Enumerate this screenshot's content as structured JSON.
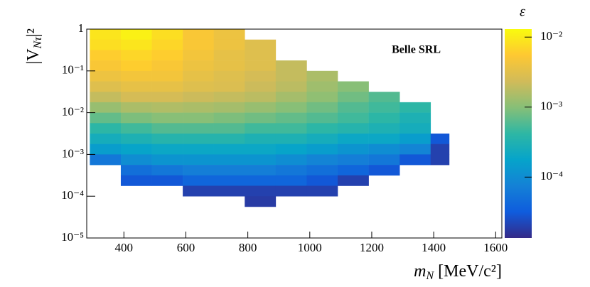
{
  "chart_data": {
    "type": "heatmap",
    "annotation": "Belle  SRL",
    "xlabel": {
      "main": "m",
      "sub": "N",
      "tail": " [MeV/c²]"
    },
    "ylabel": {
      "main": "|V",
      "sub": "Nτ",
      "tail": "|²"
    },
    "colorbar_title": "ε",
    "x_edges": [
      290,
      390,
      490,
      590,
      690,
      790,
      890,
      990,
      1090,
      1190,
      1290,
      1390,
      1450
    ],
    "y_edges": [
      1,
      0.562,
      0.316,
      0.178,
      0.1,
      0.0562,
      0.0316,
      0.0178,
      0.01,
      0.00562,
      0.00316,
      0.00178,
      0.001,
      0.000562,
      0.000316,
      0.000178,
      0.0001,
      5.62e-05
    ],
    "z": [
      [
        0.009,
        0.011,
        0.008,
        0.005,
        0.004,
        null,
        null,
        null,
        null,
        null,
        null,
        null
      ],
      [
        0.008,
        0.009,
        0.007,
        0.005,
        0.004,
        0.003,
        null,
        null,
        null,
        null,
        null,
        null
      ],
      [
        0.006,
        0.007,
        0.006,
        0.0045,
        0.0035,
        0.003,
        null,
        null,
        null,
        null,
        null,
        null
      ],
      [
        0.005,
        0.006,
        0.005,
        0.004,
        0.0035,
        0.003,
        0.002,
        null,
        null,
        null,
        null,
        null
      ],
      [
        0.004,
        0.0045,
        0.0045,
        0.0035,
        0.003,
        0.0025,
        0.002,
        0.0015,
        null,
        null,
        null,
        null
      ],
      [
        0.003,
        0.0035,
        0.0035,
        0.003,
        0.0028,
        0.0022,
        0.0018,
        0.0013,
        0.001,
        null,
        null,
        null
      ],
      [
        0.002,
        0.0025,
        0.0025,
        0.0022,
        0.002,
        0.0018,
        0.0014,
        0.0011,
        0.0008,
        0.0006,
        null,
        null
      ],
      [
        0.0012,
        0.0015,
        0.0016,
        0.0015,
        0.0014,
        0.0012,
        0.001,
        0.0008,
        0.0006,
        0.0005,
        0.0004,
        null
      ],
      [
        0.0007,
        0.0009,
        0.001,
        0.001,
        0.0009,
        0.0008,
        0.0007,
        0.0006,
        0.0005,
        0.0004,
        0.0003,
        null
      ],
      [
        0.0004,
        0.0005,
        0.0006,
        0.0006,
        0.0006,
        0.0005,
        0.0005,
        0.0004,
        0.00035,
        0.0003,
        0.00025,
        null
      ],
      [
        0.00025,
        0.0003,
        0.00035,
        0.00035,
        0.00035,
        0.0003,
        0.0003,
        0.00025,
        0.0002,
        0.0002,
        0.00015,
        3e-05
      ],
      [
        0.00015,
        0.00018,
        0.0002,
        0.0002,
        0.0002,
        0.0002,
        0.00018,
        0.00015,
        0.00012,
        0.0001,
        8e-05,
        2e-05
      ],
      [
        6e-05,
        0.0001,
        0.00012,
        0.00012,
        0.00012,
        0.00012,
        0.0001,
        8e-05,
        7e-05,
        6e-05,
        3e-05,
        2e-05
      ],
      [
        null,
        5e-05,
        6e-05,
        7e-05,
        7e-05,
        7e-05,
        6e-05,
        5e-05,
        4e-05,
        3e-05,
        null,
        null
      ],
      [
        null,
        3e-05,
        3e-05,
        4e-05,
        4e-05,
        4e-05,
        4e-05,
        3e-05,
        2e-05,
        null,
        null,
        null
      ],
      [
        null,
        null,
        null,
        2e-05,
        2e-05,
        2e-05,
        2e-05,
        2e-05,
        null,
        null,
        null,
        null
      ],
      [
        null,
        null,
        null,
        null,
        null,
        1.8e-05,
        null,
        null,
        null,
        null,
        null,
        null
      ]
    ],
    "xlim": [
      280,
      1620
    ],
    "xticks": [
      400,
      600,
      800,
      1000,
      1200,
      1400,
      1600
    ],
    "ylim": [
      1e-05,
      1
    ],
    "ylog": true,
    "yticks": [
      {
        "value": 1e-05,
        "label": "10⁻⁵"
      },
      {
        "value": 0.0001,
        "label": "10⁻⁴"
      },
      {
        "value": 0.001,
        "label": "10⁻³"
      },
      {
        "value": 0.01,
        "label": "10⁻²"
      },
      {
        "value": 0.1,
        "label": "10⁻¹"
      },
      {
        "value": 1,
        "label": "1"
      }
    ],
    "zlim": [
      1.35e-05,
      0.013
    ],
    "zlog": true,
    "zticks": [
      {
        "value": 0.0001,
        "label": "10⁻⁴"
      },
      {
        "value": 0.001,
        "label": "10⁻³"
      },
      {
        "value": 0.01,
        "label": "10⁻²"
      }
    ],
    "colormap": [
      "#352a87",
      "#0f5cdd",
      "#1481d6",
      "#06a4ca",
      "#2eb7a4",
      "#87bf77",
      "#d1bb59",
      "#fec832",
      "#f9fb0e"
    ]
  }
}
